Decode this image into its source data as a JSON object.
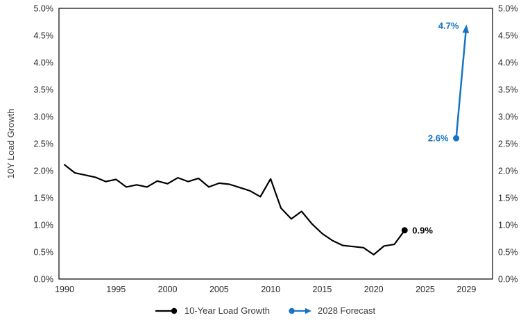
{
  "chart_data": {
    "type": "line",
    "title": "",
    "background": "#ffffff",
    "grid": false,
    "y_axis": {
      "label": "10Y Load Growth",
      "min": 0,
      "max": 5,
      "tick_values": [
        0,
        0.5,
        1.0,
        1.5,
        2.0,
        2.5,
        3.0,
        3.5,
        4.0,
        4.5,
        5.0
      ],
      "tick_labels": [
        "0.0%",
        "0.5%",
        "1.0%",
        "1.5%",
        "2.0%",
        "2.5%",
        "3.0%",
        "3.5%",
        "4.0%",
        "4.5%",
        "5.0%"
      ],
      "mirrored_on_right": true
    },
    "x_axis": {
      "label": "",
      "tick_values": [
        1990,
        1995,
        2000,
        2005,
        2010,
        2015,
        2020,
        2025,
        2029
      ],
      "tick_labels": [
        "1990",
        "1995",
        "2000",
        "2005",
        "2010",
        "2015",
        "2020",
        "2025",
        "2029"
      ]
    },
    "series": [
      {
        "name": "10-Year Load Growth",
        "type": "line",
        "color": "#000000",
        "x": [
          1990,
          1991,
          1992,
          1993,
          1994,
          1995,
          1996,
          1997,
          1998,
          1999,
          2000,
          2001,
          2002,
          2003,
          2004,
          2005,
          2006,
          2007,
          2008,
          2009,
          2010,
          2011,
          2012,
          2013,
          2014,
          2015,
          2016,
          2017,
          2018,
          2019,
          2020,
          2021,
          2022,
          2023
        ],
        "values": [
          2.11,
          1.96,
          1.92,
          1.88,
          1.8,
          1.84,
          1.7,
          1.74,
          1.7,
          1.81,
          1.76,
          1.87,
          1.8,
          1.86,
          1.7,
          1.77,
          1.75,
          1.69,
          1.63,
          1.52,
          1.85,
          1.31,
          1.11,
          1.25,
          1.02,
          0.84,
          0.71,
          0.62,
          0.6,
          0.58,
          0.45,
          0.61,
          0.64,
          0.9
        ],
        "end_marker": true,
        "end_label": "0.9%"
      },
      {
        "name": "2028 Forecast",
        "type": "arrow",
        "color": "#1574c4",
        "start": {
          "year": 2028,
          "value": 2.6,
          "label": "2.6%"
        },
        "end": {
          "year": 2029,
          "value": 4.7,
          "label": "4.7%"
        }
      }
    ],
    "legend": {
      "position": "bottom",
      "entries": [
        "10-Year Load Growth",
        "2028 Forecast"
      ]
    },
    "annotation_labels": [
      "0.9%",
      "2.6%",
      "4.7%"
    ],
    "colors": {
      "line_series": "#000000",
      "forecast_blue": "#1574c4",
      "tick_text": "#262626",
      "axis_title_text": "#3f3f3f",
      "plot_border": "#000000"
    }
  }
}
